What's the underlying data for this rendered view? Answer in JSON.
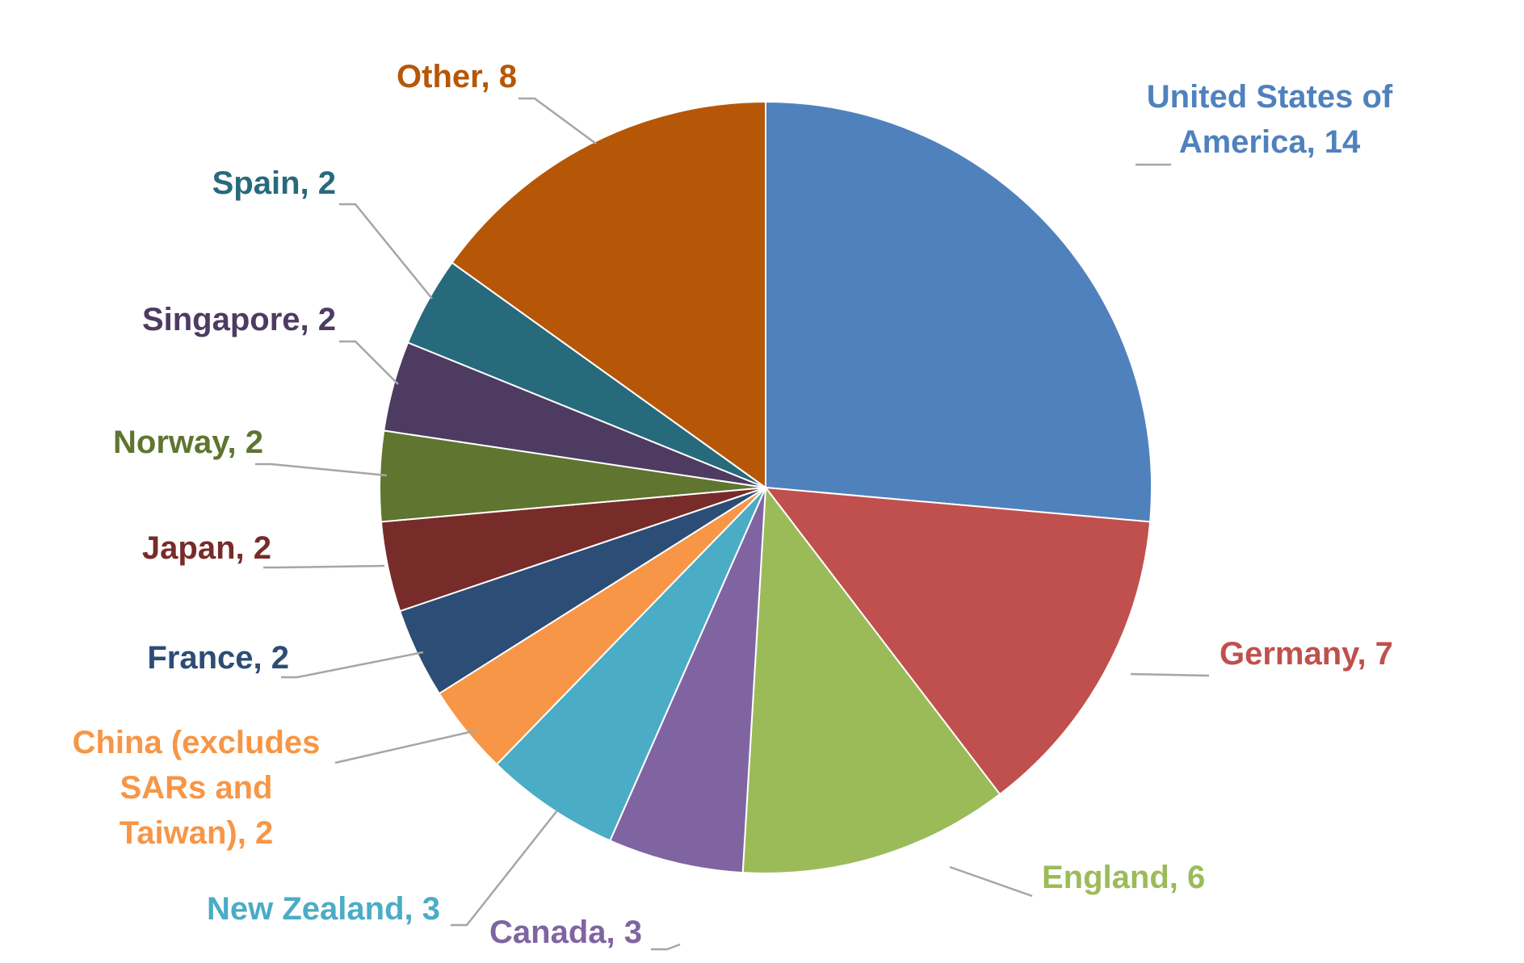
{
  "chart_data": {
    "type": "pie",
    "start_angle": "12 o'clock",
    "direction": "clockwise",
    "legend": "none",
    "slices": [
      {
        "label_lines": [
          "United States of",
          "America, 14"
        ],
        "value": 14,
        "color": "#4f81bd"
      },
      {
        "label_lines": [
          "Germany, 7"
        ],
        "value": 7,
        "color": "#c0504d"
      },
      {
        "label_lines": [
          "England, 6"
        ],
        "value": 6,
        "color": "#9bbb59"
      },
      {
        "label_lines": [
          "Canada, 3"
        ],
        "value": 3,
        "color": "#8064a2"
      },
      {
        "label_lines": [
          "New Zealand, 3"
        ],
        "value": 3,
        "color": "#4bacc6"
      },
      {
        "label_lines": [
          "China (excludes",
          "SARs and",
          "Taiwan), 2"
        ],
        "value": 2,
        "color": "#f79646"
      },
      {
        "label_lines": [
          "France, 2"
        ],
        "value": 2,
        "color": "#2c4d75"
      },
      {
        "label_lines": [
          "Japan, 2"
        ],
        "value": 2,
        "color": "#772c2a"
      },
      {
        "label_lines": [
          "Norway, 2"
        ],
        "value": 2,
        "color": "#5f7530"
      },
      {
        "label_lines": [
          "Singapore, 2"
        ],
        "value": 2,
        "color": "#4d3b62"
      },
      {
        "label_lines": [
          "Spain, 2"
        ],
        "value": 2,
        "color": "#276a7c"
      },
      {
        "label_lines": [
          "Other, 8"
        ],
        "value": 8,
        "color": "#b65708"
      }
    ]
  }
}
